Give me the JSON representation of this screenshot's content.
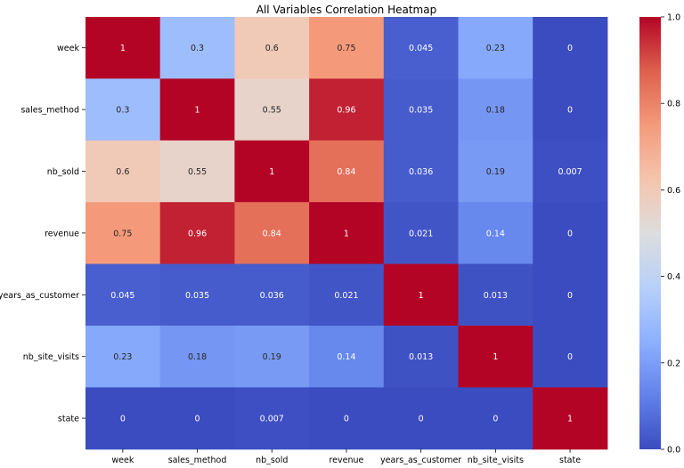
{
  "chart_data": {
    "type": "heatmap",
    "title": "All Variables Correlation Heatmap",
    "xlabel": "",
    "ylabel": "",
    "rows": [
      "week",
      "sales_method",
      "nb_sold",
      "revenue",
      "years_as_customer",
      "nb_site_visits",
      "state"
    ],
    "columns": [
      "week",
      "sales_method",
      "nb_sold",
      "revenue",
      "years_as_customer",
      "nb_site_visits",
      "state"
    ],
    "values": [
      [
        1,
        0.3,
        0.6,
        0.75,
        0.045,
        0.23,
        0
      ],
      [
        0.3,
        1,
        0.55,
        0.96,
        0.035,
        0.18,
        0
      ],
      [
        0.6,
        0.55,
        1,
        0.84,
        0.036,
        0.19,
        0.007
      ],
      [
        0.75,
        0.96,
        0.84,
        1,
        0.021,
        0.14,
        0
      ],
      [
        0.045,
        0.035,
        0.036,
        0.021,
        1,
        0.013,
        0
      ],
      [
        0.23,
        0.18,
        0.19,
        0.14,
        0.013,
        1,
        0
      ],
      [
        0,
        0,
        0.007,
        0,
        0,
        0,
        1
      ]
    ],
    "colormap": "coolwarm",
    "vmin": 0,
    "vmax": 1,
    "colorbar_ticks": [
      "0.0",
      "0.2",
      "0.4",
      "0.6",
      "0.8",
      "1.0"
    ],
    "colorbar_tick_values": [
      0,
      0.2,
      0.4,
      0.6,
      0.8,
      1.0
    ],
    "grid": false
  }
}
